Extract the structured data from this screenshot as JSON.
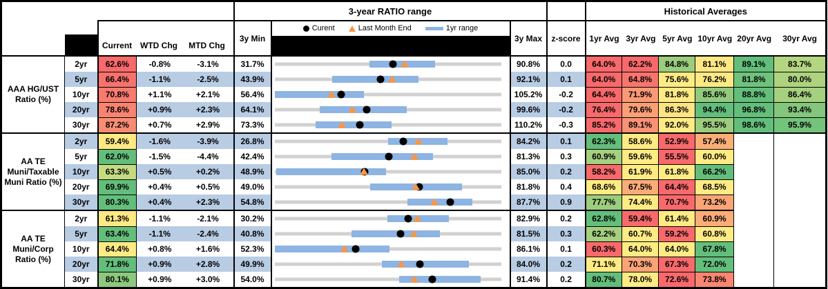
{
  "palette": {
    "stripe_blue": "#B8CCE4",
    "range_bar_blue": "#8DB4E2",
    "track_gray": "#D1D1D1",
    "triangle_orange": "#F79646",
    "dot_black": "#000000",
    "heat_red": "#F8696B",
    "heat_yellow": "#FFEB84",
    "heat_green": "#63BE7B"
  },
  "header": {
    "ratio_range_title": "3-year RATIO range",
    "historical_title": "Historical Averages",
    "current": "Current",
    "wtd": "WTD Chg",
    "mtd": "MTD Chg",
    "min3y": "3y Min",
    "max3y": "3y Max",
    "zscore": "z-score",
    "avg_cols": [
      "1yr Avg",
      "3yr Avg",
      "5yr Avg",
      "10yr Avg",
      "20yr Avg",
      "30yr Avg"
    ],
    "legend_current": "Curent",
    "legend_last_month": "Last Month End",
    "legend_range": "1yr range"
  },
  "chart_data": {
    "type": "table",
    "title": "3-year RATIO range",
    "note": "Each row: dot = Current, triangle = Last Month End, blue bar = 1yr range, gray track spans 3y Min to 3y Max",
    "groups": [
      {
        "label": "AAA HG/UST Ratio (%)",
        "rows": [
          {
            "tenor": "2yr",
            "striped": false,
            "current": "62.6%",
            "current_color": "#F8696B",
            "wtd": "-0.8%",
            "mtd": "-3.1%",
            "min3y": "31.7%",
            "max3y": "90.8%",
            "z": "0.0",
            "range": {
              "min": 31.7,
              "max": 90.8,
              "current": 62.6,
              "last_month_end": 65.7,
              "yr1_low": 56.4,
              "yr1_high": 73.6
            },
            "avgs": [
              {
                "v": "64.0%",
                "c": "#F8696B"
              },
              {
                "v": "62.2%",
                "c": "#F8696B"
              },
              {
                "v": "84.8%",
                "c": "#9CCC7E"
              },
              {
                "v": "81.1%",
                "c": "#FFE884"
              },
              {
                "v": "89.1%",
                "c": "#63BE7B"
              },
              {
                "v": "83.7%",
                "c": "#B5D680"
              }
            ]
          },
          {
            "tenor": "5yr",
            "striped": true,
            "current": "66.4%",
            "current_color": "#F8726D",
            "wtd": "-1.1%",
            "mtd": "-2.5%",
            "min3y": "43.9%",
            "max3y": "92.1%",
            "z": "0.1",
            "range": {
              "min": 43.9,
              "max": 92.1,
              "current": 66.4,
              "last_month_end": 68.9,
              "yr1_low": 56.1,
              "yr1_high": 74.6
            },
            "avgs": [
              {
                "v": "64.0%",
                "c": "#F8696B"
              },
              {
                "v": "64.8%",
                "c": "#F8756E"
              },
              {
                "v": "75.6%",
                "c": "#FFEB84"
              },
              {
                "v": "76.2%",
                "c": "#FFE984"
              },
              {
                "v": "81.8%",
                "c": "#6FC27C"
              },
              {
                "v": "80.0%",
                "c": "#AED37F"
              }
            ]
          },
          {
            "tenor": "10yr",
            "striped": false,
            "current": "70.8%",
            "current_color": "#F87B6F",
            "wtd": "+1.1%",
            "mtd": "+2.1%",
            "min3y": "56.4%",
            "max3y": "105.2%",
            "z": "-0.2",
            "range": {
              "min": 56.4,
              "max": 105.2,
              "current": 70.8,
              "last_month_end": 68.7,
              "yr1_low": 56.4,
              "yr1_high": 75.6
            },
            "avgs": [
              {
                "v": "64.4%",
                "c": "#F8696B"
              },
              {
                "v": "71.9%",
                "c": "#FA9976"
              },
              {
                "v": "81.8%",
                "c": "#FFEB84"
              },
              {
                "v": "85.6%",
                "c": "#92C97E"
              },
              {
                "v": "88.8%",
                "c": "#63BE7B"
              },
              {
                "v": "86.4%",
                "c": "#A5D07F"
              }
            ]
          },
          {
            "tenor": "20yr",
            "striped": true,
            "current": "78.6%",
            "current_color": "#F88371",
            "wtd": "+0.9%",
            "mtd": "+2.3%",
            "min3y": "64.1%",
            "max3y": "99.6%",
            "z": "-0.2",
            "range": {
              "min": 64.1,
              "max": 99.6,
              "current": 78.6,
              "last_month_end": 76.3,
              "yr1_low": 71.2,
              "yr1_high": 84.8
            },
            "avgs": [
              {
                "v": "76.4%",
                "c": "#F8696B"
              },
              {
                "v": "79.6%",
                "c": "#FA9F76"
              },
              {
                "v": "86.3%",
                "c": "#FEE383"
              },
              {
                "v": "94.4%",
                "c": "#63BE7B"
              },
              {
                "v": "96.8%",
                "c": "#63BE7B"
              },
              {
                "v": "93.4%",
                "c": "#84C67D"
              }
            ]
          },
          {
            "tenor": "30yr",
            "striped": false,
            "current": "87.2%",
            "current_color": "#F88C72",
            "wtd": "+0.7%",
            "mtd": "+2.9%",
            "min3y": "73.3%",
            "max3y": "110.2%",
            "z": "-0.3",
            "range": {
              "min": 73.3,
              "max": 110.2,
              "current": 87.2,
              "last_month_end": 84.3,
              "yr1_low": 80.0,
              "yr1_high": 92.4
            },
            "avgs": [
              {
                "v": "85.2%",
                "c": "#F8696B"
              },
              {
                "v": "89.1%",
                "c": "#FA9275"
              },
              {
                "v": "92.0%",
                "c": "#FFEB84"
              },
              {
                "v": "95.5%",
                "c": "#9CCC7E"
              },
              {
                "v": "98.6%",
                "c": "#63BE7B"
              },
              {
                "v": "95.9%",
                "c": "#74C37C"
              }
            ]
          }
        ]
      },
      {
        "label": "AA TE Muni/Taxable Muni Ratio (%)",
        "rows": [
          {
            "tenor": "2yr",
            "striped": true,
            "current": "59.4%",
            "current_color": "#FFE984",
            "wtd": "-1.6%",
            "mtd": "-3.9%",
            "min3y": "26.8%",
            "max3y": "84.2%",
            "z": "0.1",
            "range": {
              "min": 26.8,
              "max": 84.2,
              "current": 59.4,
              "last_month_end": 63.3,
              "yr1_low": 55.5,
              "yr1_high": 70.6
            },
            "avgs": [
              {
                "v": "62.3%",
                "c": "#63BE7B"
              },
              {
                "v": "58.6%",
                "c": "#FFEB84"
              },
              {
                "v": "52.9%",
                "c": "#F8696B"
              },
              {
                "v": "57.4%",
                "c": "#FBAF77"
              },
              {
                "v": "",
                "c": "#FFFFFF"
              },
              {
                "v": "",
                "c": "#FFFFFF"
              }
            ]
          },
          {
            "tenor": "5yr",
            "striped": false,
            "current": "62.0%",
            "current_color": "#63BE7B",
            "wtd": "-1.5%",
            "mtd": "-4.4%",
            "min3y": "42.4%",
            "max3y": "81.3%",
            "z": "0.3",
            "range": {
              "min": 42.4,
              "max": 81.3,
              "current": 62.0,
              "last_month_end": 66.4,
              "yr1_low": 52.2,
              "yr1_high": 69.6
            },
            "avgs": [
              {
                "v": "60.9%",
                "c": "#A5D07F"
              },
              {
                "v": "59.6%",
                "c": "#FFEB84"
              },
              {
                "v": "55.5%",
                "c": "#F8696B"
              },
              {
                "v": "60.0%",
                "c": "#FFEB84"
              },
              {
                "v": "",
                "c": "#FFFFFF"
              },
              {
                "v": "",
                "c": "#FFFFFF"
              }
            ]
          },
          {
            "tenor": "10yr",
            "striped": true,
            "current": "63.3%",
            "current_color": "#C3DB81",
            "wtd": "+0.5%",
            "mtd": "+0.2%",
            "min3y": "48.9%",
            "max3y": "85.0%",
            "z": "0.2",
            "range": {
              "min": 48.9,
              "max": 85.0,
              "current": 63.3,
              "last_month_end": 63.1,
              "yr1_low": 49.2,
              "yr1_high": 66.7
            },
            "avgs": [
              {
                "v": "58.2%",
                "c": "#F8696B"
              },
              {
                "v": "61.9%",
                "c": "#FFEB84"
              },
              {
                "v": "61.8%",
                "c": "#FFEB84"
              },
              {
                "v": "66.2%",
                "c": "#63BE7B"
              },
              {
                "v": "",
                "c": "#FFFFFF"
              },
              {
                "v": "",
                "c": "#FFFFFF"
              }
            ]
          },
          {
            "tenor": "20yr",
            "striped": false,
            "current": "69.9%",
            "current_color": "#63BE7B",
            "wtd": "+0.4%",
            "mtd": "+0.5%",
            "min3y": "49.0%",
            "max3y": "81.8%",
            "z": "0.4",
            "range": {
              "min": 49.0,
              "max": 81.8,
              "current": 69.9,
              "last_month_end": 69.4,
              "yr1_low": 62.8,
              "yr1_high": 76.2
            },
            "avgs": [
              {
                "v": "68.6%",
                "c": "#FFEB84"
              },
              {
                "v": "67.5%",
                "c": "#FBAC77"
              },
              {
                "v": "64.4%",
                "c": "#F8696B"
              },
              {
                "v": "68.5%",
                "c": "#FFEB84"
              },
              {
                "v": "",
                "c": "#FFFFFF"
              },
              {
                "v": "",
                "c": "#FFFFFF"
              }
            ]
          },
          {
            "tenor": "30yr",
            "striped": true,
            "current": "80.3%",
            "current_color": "#63BE7B",
            "wtd": "+0.4%",
            "mtd": "+2.3%",
            "min3y": "54.8%",
            "max3y": "87.7%",
            "z": "0.9",
            "range": {
              "min": 54.8,
              "max": 87.7,
              "current": 80.3,
              "last_month_end": 78.0,
              "yr1_low": 74.1,
              "yr1_high": 83.5
            },
            "avgs": [
              {
                "v": "77.7%",
                "c": "#9CCC7E"
              },
              {
                "v": "74.4%",
                "c": "#FFEB84"
              },
              {
                "v": "70.7%",
                "c": "#F8696B"
              },
              {
                "v": "73.2%",
                "c": "#FBA476"
              },
              {
                "v": "",
                "c": "#FFFFFF"
              },
              {
                "v": "",
                "c": "#FFFFFF"
              }
            ]
          }
        ]
      },
      {
        "label": "AA TE Muni/Corp Ratio (%)",
        "rows": [
          {
            "tenor": "2yr",
            "striped": false,
            "current": "61.3%",
            "current_color": "#FFE984",
            "wtd": "-1.1%",
            "mtd": "-2.1%",
            "min3y": "30.2%",
            "max3y": "82.9%",
            "z": "0.2",
            "range": {
              "min": 30.2,
              "max": 82.9,
              "current": 61.3,
              "last_month_end": 63.4,
              "yr1_low": 56.4,
              "yr1_high": 70.7
            },
            "avgs": [
              {
                "v": "62.8%",
                "c": "#63BE7B"
              },
              {
                "v": "59.4%",
                "c": "#F8696B"
              },
              {
                "v": "61.4%",
                "c": "#FFEB84"
              },
              {
                "v": "60.9%",
                "c": "#FBAC77"
              },
              {
                "v": "",
                "c": "#FFFFFF"
              },
              {
                "v": "",
                "c": "#FFFFFF"
              }
            ]
          },
          {
            "tenor": "5yr",
            "striped": true,
            "current": "63.4%",
            "current_color": "#63BE7B",
            "wtd": "-1.1%",
            "mtd": "-2.4%",
            "min3y": "40.8%",
            "max3y": "81.5%",
            "z": "0.3",
            "range": {
              "min": 40.8,
              "max": 81.5,
              "current": 63.4,
              "last_month_end": 65.8,
              "yr1_low": 54.6,
              "yr1_high": 70.5
            },
            "avgs": [
              {
                "v": "62.2%",
                "c": "#A5D07F"
              },
              {
                "v": "60.7%",
                "c": "#FFEB84"
              },
              {
                "v": "59.2%",
                "c": "#F8696B"
              },
              {
                "v": "60.8%",
                "c": "#FFEB84"
              },
              {
                "v": "",
                "c": "#FFFFFF"
              },
              {
                "v": "",
                "c": "#FFFFFF"
              }
            ]
          },
          {
            "tenor": "10yr",
            "striped": false,
            "current": "64.4%",
            "current_color": "#FFEB84",
            "wtd": "+0.8%",
            "mtd": "+1.6%",
            "min3y": "52.3%",
            "max3y": "86.1%",
            "z": "0.1",
            "range": {
              "min": 52.3,
              "max": 86.1,
              "current": 64.4,
              "last_month_end": 62.8,
              "yr1_low": 52.3,
              "yr1_high": 69.5
            },
            "avgs": [
              {
                "v": "60.3%",
                "c": "#F8696B"
              },
              {
                "v": "64.0%",
                "c": "#FFEB84"
              },
              {
                "v": "64.0%",
                "c": "#FFEB84"
              },
              {
                "v": "67.8%",
                "c": "#63BE7B"
              },
              {
                "v": "",
                "c": "#FFFFFF"
              },
              {
                "v": "",
                "c": "#FFFFFF"
              }
            ]
          },
          {
            "tenor": "20yr",
            "striped": true,
            "current": "71.8%",
            "current_color": "#63BE7B",
            "wtd": "+0.9%",
            "mtd": "+2.8%",
            "min3y": "49.9%",
            "max3y": "84.0%",
            "z": "0.2",
            "range": {
              "min": 49.9,
              "max": 84.0,
              "current": 71.8,
              "last_month_end": 69.0,
              "yr1_low": 66.1,
              "yr1_high": 79.2
            },
            "avgs": [
              {
                "v": "71.1%",
                "c": "#FFEB84"
              },
              {
                "v": "70.3%",
                "c": "#FBA476"
              },
              {
                "v": "67.3%",
                "c": "#F8696B"
              },
              {
                "v": "72.0%",
                "c": "#63BE7B"
              },
              {
                "v": "",
                "c": "#FFFFFF"
              },
              {
                "v": "",
                "c": "#FFFFFF"
              }
            ]
          },
          {
            "tenor": "30yr",
            "striped": false,
            "current": "80.1%",
            "current_color": "#8CC87D",
            "wtd": "+0.9%",
            "mtd": "+3.0%",
            "min3y": "54.0%",
            "max3y": "91.4%",
            "z": "0.2",
            "range": {
              "min": 54.0,
              "max": 91.4,
              "current": 80.1,
              "last_month_end": 77.1,
              "yr1_low": 74.6,
              "yr1_high": 88.0
            },
            "avgs": [
              {
                "v": "80.7%",
                "c": "#63BE7B"
              },
              {
                "v": "78.0%",
                "c": "#FFEB84"
              },
              {
                "v": "72.6%",
                "c": "#F8696B"
              },
              {
                "v": "73.8%",
                "c": "#F98670"
              },
              {
                "v": "",
                "c": "#FFFFFF"
              },
              {
                "v": "",
                "c": "#FFFFFF"
              }
            ]
          }
        ]
      }
    ]
  }
}
